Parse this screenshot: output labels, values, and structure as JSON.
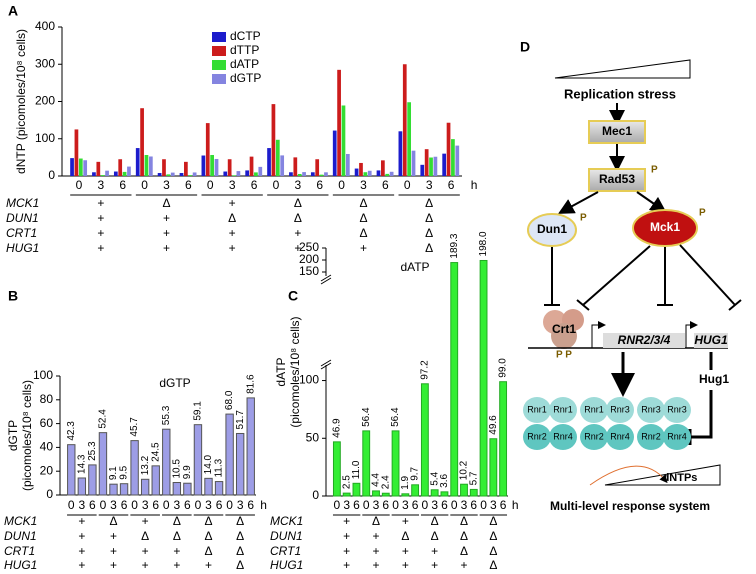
{
  "chart_data": [
    {
      "type": "bar",
      "panel": "A",
      "ylabel": [
        "dNTP (picomoles/10⁸ cells)"
      ],
      "categories": [
        "0",
        "3",
        "6",
        "0",
        "3",
        "6",
        "0",
        "3",
        "6",
        "0",
        "3",
        "6",
        "0",
        "3",
        "6",
        "0",
        "3",
        "6"
      ],
      "x_unit": "h",
      "series": [
        {
          "name": "dCTP",
          "color": "#1c1ccc",
          "values": [
            48,
            10,
            12,
            75,
            8,
            8,
            55,
            12,
            15,
            75,
            10,
            10,
            122,
            20,
            15,
            120,
            30,
            60
          ]
        },
        {
          "name": "dTTP",
          "color": "#cc1c1c",
          "values": [
            125,
            38,
            45,
            182,
            45,
            38,
            142,
            45,
            52,
            193,
            50,
            45,
            285,
            35,
            42,
            300,
            72,
            143
          ]
        },
        {
          "name": "dATP",
          "color": "#33dd33",
          "values": [
            46.9,
            2.5,
            11.0,
            56.4,
            4.4,
            2.4,
            56.4,
            1.9,
            9.7,
            97.2,
            5.4,
            3.6,
            189.3,
            10.2,
            5.7,
            198.0,
            49.6,
            99.0
          ]
        },
        {
          "name": "dGTP",
          "color": "#8484e0",
          "values": [
            42.3,
            14.3,
            25.3,
            52.4,
            9.1,
            9.5,
            45.7,
            13.2,
            24.5,
            55.3,
            10.5,
            9.9,
            59.1,
            14.0,
            11.3,
            68.0,
            51.7,
            81.6
          ]
        }
      ],
      "ylim": [
        0,
        400
      ],
      "yticks": [
        0,
        100,
        200,
        300,
        400
      ],
      "genotypes": {
        "labels": [
          "MCK1",
          "DUN1",
          "CRT1",
          "HUG1"
        ],
        "rows": [
          [
            "+",
            "Δ",
            "+",
            "Δ",
            "Δ",
            "Δ"
          ],
          [
            "+",
            "+",
            "Δ",
            "Δ",
            "Δ",
            "Δ"
          ],
          [
            "+",
            "+",
            "+",
            "+",
            "Δ",
            "Δ"
          ],
          [
            "+",
            "+",
            "+",
            "+",
            "+",
            "Δ"
          ]
        ]
      }
    },
    {
      "type": "bar",
      "panel": "B",
      "title": "dGTP",
      "ylabel": [
        "dGTP",
        "(picomoles/10⁸ cells)"
      ],
      "categories": [
        "0",
        "3",
        "6",
        "0",
        "3",
        "6",
        "0",
        "3",
        "6",
        "0",
        "3",
        "6",
        "0",
        "3",
        "6",
        "0",
        "3",
        "6"
      ],
      "x_unit": "h",
      "values": [
        42.3,
        14.3,
        25.3,
        52.4,
        9.1,
        9.5,
        45.7,
        13.2,
        24.5,
        55.3,
        10.5,
        9.9,
        59.1,
        14.0,
        11.3,
        68.0,
        51.7,
        81.6
      ],
      "value_labels": [
        "42.3",
        "14.3",
        "25.3",
        "52.4",
        "9.1",
        "9.5",
        "45.7",
        "13.2",
        "24.5",
        "55.3",
        "10.5",
        "9.9",
        "59.1",
        "14.0",
        "11.3",
        "68.0",
        "51.7",
        "81.6"
      ],
      "color": "#9d9de6",
      "ylim": [
        0,
        100
      ],
      "yticks": [
        0,
        20,
        40,
        60,
        80,
        100
      ],
      "genotypes": {
        "labels": [
          "MCK1",
          "DUN1",
          "CRT1",
          "HUG1"
        ],
        "rows": [
          [
            "+",
            "Δ",
            "+",
            "Δ",
            "Δ",
            "Δ"
          ],
          [
            "+",
            "+",
            "Δ",
            "Δ",
            "Δ",
            "Δ"
          ],
          [
            "+",
            "+",
            "+",
            "+",
            "Δ",
            "Δ"
          ],
          [
            "+",
            "+",
            "+",
            "+",
            "+",
            "Δ"
          ]
        ]
      }
    },
    {
      "type": "bar",
      "panel": "C",
      "title": "dATP",
      "ylabel": [
        "dATP",
        "(picomoles/10⁸ cells)"
      ],
      "categories": [
        "0",
        "3",
        "6",
        "0",
        "3",
        "6",
        "0",
        "3",
        "6",
        "0",
        "3",
        "6",
        "0",
        "3",
        "6",
        "0",
        "3",
        "6"
      ],
      "x_unit": "h",
      "values": [
        46.9,
        2.5,
        11.0,
        56.4,
        4.4,
        2.4,
        56.4,
        1.9,
        9.7,
        97.2,
        5.4,
        3.6,
        189.3,
        10.2,
        5.7,
        198.0,
        49.6,
        99.0
      ],
      "value_labels": [
        "46.9",
        "2.5",
        "11.0",
        "56.4",
        "4.4",
        "2.4",
        "56.4",
        "1.9",
        "9.7",
        "97.2",
        "5.4",
        "3.6",
        "189.3",
        "10.2",
        "5.7",
        "198.0",
        "49.6",
        "99.0"
      ],
      "color": "#33ee33",
      "ylim": [
        0,
        250
      ],
      "y_break": [
        110,
        150
      ],
      "yticks": [
        0,
        50,
        100,
        150,
        200,
        250
      ],
      "genotypes": {
        "labels": [
          "MCK1",
          "DUN1",
          "CRT1",
          "HUG1"
        ],
        "rows": [
          [
            "+",
            "Δ",
            "+",
            "Δ",
            "Δ",
            "Δ"
          ],
          [
            "+",
            "+",
            "Δ",
            "Δ",
            "Δ",
            "Δ"
          ],
          [
            "+",
            "+",
            "+",
            "+",
            "Δ",
            "Δ"
          ],
          [
            "+",
            "+",
            "+",
            "+",
            "+",
            "Δ"
          ]
        ]
      }
    }
  ],
  "diagram": {
    "panel": "D",
    "stress": "Replication stress",
    "mec1": "Mec1",
    "rad53": "Rad53",
    "p": "P",
    "dun1": "Dun1",
    "mck1": "Mck1",
    "crt1": "Crt1",
    "crt1_p": "P P",
    "rnr234": "RNR2/3/4",
    "hug1_gene": "HUG1",
    "hug1": "Hug1",
    "complexes": [
      [
        "Rnr1",
        "Rnr1",
        "Rnr2",
        "Rnr4"
      ],
      [
        "Rnr1",
        "Rnr3",
        "Rnr2",
        "Rnr4"
      ],
      [
        "Rnr3",
        "Rnr3",
        "Rnr2",
        "Rnr4"
      ]
    ],
    "dntps": "dNTPs",
    "caption": "Multi-level response system"
  }
}
